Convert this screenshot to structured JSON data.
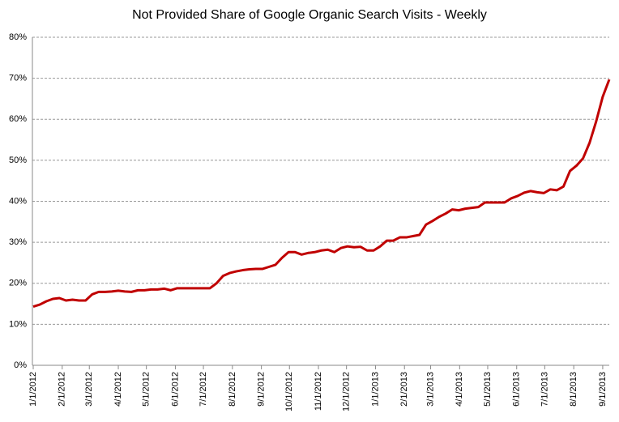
{
  "chart_data": {
    "type": "line",
    "title": "Not Provided Share of Google Organic Search Visits - Weekly",
    "x": [
      "2012-01-01",
      "2012-01-08",
      "2012-01-15",
      "2012-01-22",
      "2012-01-29",
      "2012-02-05",
      "2012-02-12",
      "2012-02-19",
      "2012-02-26",
      "2012-03-04",
      "2012-03-11",
      "2012-03-18",
      "2012-03-25",
      "2012-04-01",
      "2012-04-08",
      "2012-04-15",
      "2012-04-22",
      "2012-04-29",
      "2012-05-06",
      "2012-05-13",
      "2012-05-20",
      "2012-05-27",
      "2012-06-03",
      "2012-06-10",
      "2012-06-17",
      "2012-06-24",
      "2012-07-01",
      "2012-07-08",
      "2012-07-15",
      "2012-07-22",
      "2012-07-29",
      "2012-08-05",
      "2012-08-12",
      "2012-08-19",
      "2012-08-26",
      "2012-09-02",
      "2012-09-09",
      "2012-09-16",
      "2012-09-23",
      "2012-09-30",
      "2012-10-07",
      "2012-10-14",
      "2012-10-21",
      "2012-10-28",
      "2012-11-04",
      "2012-11-11",
      "2012-11-18",
      "2012-11-25",
      "2012-12-02",
      "2012-12-09",
      "2012-12-16",
      "2012-12-23",
      "2012-12-30",
      "2013-01-06",
      "2013-01-13",
      "2013-01-20",
      "2013-01-27",
      "2013-02-03",
      "2013-02-10",
      "2013-02-17",
      "2013-02-24",
      "2013-03-03",
      "2013-03-10",
      "2013-03-17",
      "2013-03-24",
      "2013-03-31",
      "2013-04-07",
      "2013-04-14",
      "2013-04-21",
      "2013-04-28",
      "2013-05-05",
      "2013-05-12",
      "2013-05-19",
      "2013-05-26",
      "2013-06-02",
      "2013-06-09",
      "2013-06-16",
      "2013-06-23",
      "2013-06-30",
      "2013-07-07",
      "2013-07-14",
      "2013-07-21",
      "2013-07-28",
      "2013-08-04",
      "2013-08-11",
      "2013-08-18",
      "2013-08-25",
      "2013-09-01",
      "2013-09-08"
    ],
    "series": [
      {
        "name": "Not Provided Share",
        "color": "#c00000",
        "values": [
          14.3,
          14.8,
          15.6,
          16.2,
          16.4,
          15.8,
          16.0,
          15.8,
          15.8,
          17.3,
          17.9,
          17.9,
          18.0,
          18.2,
          18.0,
          17.9,
          18.3,
          18.3,
          18.5,
          18.5,
          18.7,
          18.3,
          18.8,
          18.8,
          18.8,
          18.8,
          18.8,
          18.8,
          20.0,
          21.8,
          22.5,
          22.9,
          23.2,
          23.4,
          23.5,
          23.5,
          24.0,
          24.5,
          26.2,
          27.6,
          27.6,
          27.0,
          27.4,
          27.6,
          28.0,
          28.2,
          27.6,
          28.6,
          29.0,
          28.8,
          28.9,
          28.0,
          28.0,
          29.0,
          30.4,
          30.4,
          31.2,
          31.2,
          31.5,
          31.8,
          34.3,
          35.2,
          36.2,
          37.0,
          38.0,
          37.8,
          38.2,
          38.4,
          38.6,
          39.7,
          39.7,
          39.7,
          39.7,
          40.7,
          41.3,
          42.1,
          42.5,
          42.2,
          42.0,
          42.9,
          42.7,
          43.6,
          47.4,
          48.7,
          50.5,
          54.3,
          59.5,
          65.5,
          69.7
        ]
      }
    ],
    "xlim": [
      "2012-01-01",
      "2013-09-08"
    ],
    "xticks": [
      {
        "value": "2012-01-01",
        "label": "1/1/2012"
      },
      {
        "value": "2012-02-01",
        "label": "2/1/2012"
      },
      {
        "value": "2012-03-01",
        "label": "3/1/2012"
      },
      {
        "value": "2012-04-01",
        "label": "4/1/2012"
      },
      {
        "value": "2012-05-01",
        "label": "5/1/2012"
      },
      {
        "value": "2012-06-01",
        "label": "6/1/2012"
      },
      {
        "value": "2012-07-01",
        "label": "7/1/2012"
      },
      {
        "value": "2012-08-01",
        "label": "8/1/2012"
      },
      {
        "value": "2012-09-01",
        "label": "9/1/2012"
      },
      {
        "value": "2012-10-01",
        "label": "10/1/2012"
      },
      {
        "value": "2012-11-01",
        "label": "11/1/2012"
      },
      {
        "value": "2012-12-01",
        "label": "12/1/2012"
      },
      {
        "value": "2013-01-01",
        "label": "1/1/2013"
      },
      {
        "value": "2013-02-01",
        "label": "2/1/2013"
      },
      {
        "value": "2013-03-01",
        "label": "3/1/2013"
      },
      {
        "value": "2013-04-01",
        "label": "4/1/2013"
      },
      {
        "value": "2013-05-01",
        "label": "5/1/2013"
      },
      {
        "value": "2013-06-01",
        "label": "6/1/2013"
      },
      {
        "value": "2013-07-01",
        "label": "7/1/2013"
      },
      {
        "value": "2013-08-01",
        "label": "8/1/2013"
      },
      {
        "value": "2013-09-01",
        "label": "9/1/2013"
      }
    ],
    "ylim": [
      0,
      80
    ],
    "yticks": [
      {
        "value": 0,
        "label": "0%"
      },
      {
        "value": 10,
        "label": "10%"
      },
      {
        "value": 20,
        "label": "20%"
      },
      {
        "value": 30,
        "label": "30%"
      },
      {
        "value": 40,
        "label": "40%"
      },
      {
        "value": 50,
        "label": "50%"
      },
      {
        "value": 60,
        "label": "60%"
      },
      {
        "value": 70,
        "label": "70%"
      },
      {
        "value": 80,
        "label": "80%"
      }
    ],
    "grid": true
  }
}
